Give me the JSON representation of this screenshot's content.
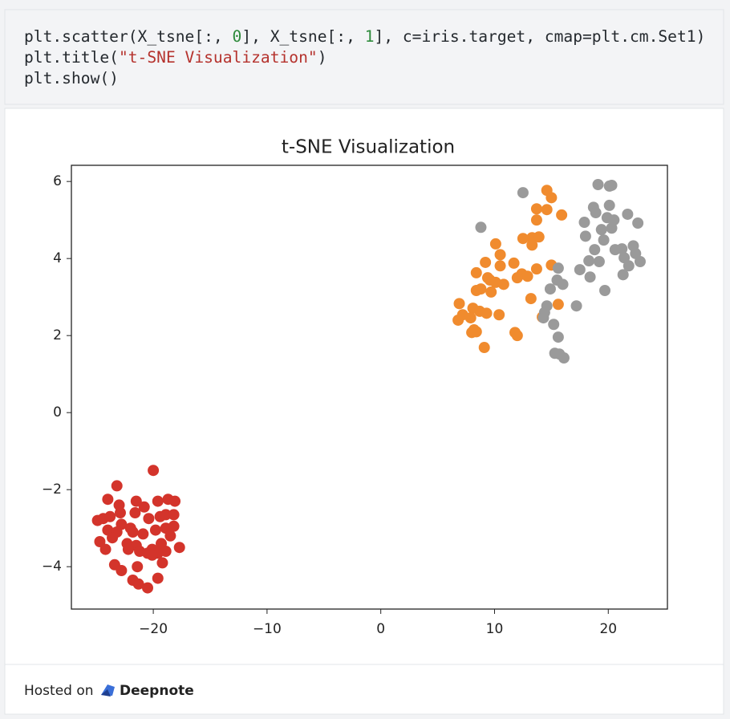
{
  "code": {
    "lines": [
      [
        {
          "text": "plt.scatter(X_tsne[:, ",
          "color": "#24292e"
        },
        {
          "text": "0",
          "color": "#2e8b3c"
        },
        {
          "text": "], X_tsne[:, ",
          "color": "#24292e"
        },
        {
          "text": "1",
          "color": "#2e8b3c"
        },
        {
          "text": "], c=iris.target, cmap=plt.cm.Set1)",
          "color": "#24292e"
        }
      ],
      [
        {
          "text": "plt.title(",
          "color": "#24292e"
        },
        {
          "text": "\"t-SNE Visualization\"",
          "color": "#b5322d"
        },
        {
          "text": ")",
          "color": "#24292e"
        }
      ],
      [
        {
          "text": "plt.show()",
          "color": "#24292e"
        }
      ]
    ]
  },
  "chart_data": {
    "type": "scatter",
    "title": "t-SNE Visualization",
    "xlim": [
      -27.2,
      25.2
    ],
    "ylim": [
      -5.1,
      6.42
    ],
    "xticks": [
      {
        "value": -20,
        "label": "−20"
      },
      {
        "value": -10,
        "label": "−10"
      },
      0,
      10,
      20
    ],
    "yticks": [
      {
        "value": -4,
        "label": "−4"
      },
      {
        "value": -2,
        "label": "−2"
      },
      0,
      2,
      4,
      6
    ],
    "grid": false,
    "series": [
      {
        "color": "#d3342b",
        "x": [
          -20.0,
          -23.2,
          -24.0,
          -21.5,
          -18.7,
          -18.1,
          -23.0,
          -20.8,
          -19.6,
          -24.9,
          -24.4,
          -23.8,
          -22.9,
          -21.6,
          -20.4,
          -19.4,
          -18.9,
          -18.2,
          -22.8,
          -22.0,
          -24.0,
          -23.2,
          -21.8,
          -20.9,
          -19.8,
          -18.9,
          -18.2,
          -24.7,
          -23.6,
          -22.3,
          -21.5,
          -22.2,
          -20.1,
          -19.3,
          -18.5,
          -17.7,
          -24.2,
          -21.2,
          -20.5,
          -19.6,
          -18.9,
          -23.4,
          -22.8,
          -21.4,
          -20.1,
          -19.2,
          -21.8,
          -21.3,
          -19.6,
          -20.5
        ],
        "y": [
          -1.5,
          -1.9,
          -2.25,
          -2.3,
          -2.25,
          -2.3,
          -2.4,
          -2.45,
          -2.3,
          -2.8,
          -2.75,
          -2.7,
          -2.6,
          -2.6,
          -2.75,
          -2.7,
          -2.65,
          -2.65,
          -2.9,
          -3.0,
          -3.05,
          -3.1,
          -3.1,
          -3.15,
          -3.05,
          -3.0,
          -2.95,
          -3.35,
          -3.25,
          -3.4,
          -3.45,
          -3.55,
          -3.55,
          -3.4,
          -3.2,
          -3.5,
          -3.55,
          -3.6,
          -3.65,
          -3.65,
          -3.6,
          -3.95,
          -4.1,
          -4.0,
          -3.7,
          -3.9,
          -4.35,
          -4.45,
          -4.3,
          -4.55
        ]
      },
      {
        "color": "#f08b2e",
        "x": [
          14.6,
          15.0,
          13.7,
          14.6,
          13.7,
          15.9,
          13.3,
          12.5,
          13.9,
          10.1,
          10.5,
          13.3,
          9.2,
          8.4,
          10.5,
          11.7,
          15.0,
          13.7,
          12.4,
          12.9,
          12.0,
          9.6,
          9.4,
          10.1,
          10.8,
          8.8,
          8.4,
          9.7,
          6.9,
          13.2,
          8.1,
          8.7,
          9.3,
          10.4,
          7.2,
          6.8,
          7.9,
          15.6,
          8.2,
          8.4,
          8.0,
          11.8,
          12.0,
          9.1,
          14.2
        ],
        "y": [
          5.77,
          5.58,
          5.29,
          5.27,
          5.0,
          5.13,
          4.54,
          4.52,
          4.56,
          4.38,
          4.1,
          4.35,
          3.9,
          3.63,
          3.81,
          3.88,
          3.83,
          3.73,
          3.6,
          3.54,
          3.5,
          3.44,
          3.5,
          3.38,
          3.33,
          3.21,
          3.17,
          3.13,
          2.83,
          2.96,
          2.71,
          2.63,
          2.58,
          2.54,
          2.54,
          2.4,
          2.46,
          2.81,
          2.15,
          2.1,
          2.08,
          2.08,
          2.0,
          1.69,
          2.48
        ]
      },
      {
        "color": "#9a9a9a",
        "x": [
          19.1,
          20.1,
          20.3,
          12.5,
          18.7,
          20.1,
          18.9,
          17.9,
          19.9,
          20.5,
          21.7,
          22.6,
          8.8,
          19.4,
          20.3,
          18.0,
          19.6,
          22.2,
          21.2,
          18.8,
          20.6,
          18.3,
          19.2,
          21.4,
          22.4,
          22.8,
          21.8,
          17.5,
          15.6,
          18.4,
          21.3,
          15.5,
          16.0,
          19.7,
          14.9,
          14.6,
          17.2,
          14.4,
          14.3,
          15.2,
          15.6,
          15.3,
          15.7,
          16.1
        ],
        "y": [
          5.92,
          5.88,
          5.9,
          5.71,
          5.33,
          5.38,
          5.19,
          4.94,
          5.06,
          5.0,
          5.15,
          4.92,
          4.81,
          4.75,
          4.79,
          4.58,
          4.48,
          4.33,
          4.25,
          4.23,
          4.23,
          3.94,
          3.92,
          4.02,
          4.13,
          3.92,
          3.81,
          3.71,
          3.75,
          3.52,
          3.58,
          3.44,
          3.33,
          3.17,
          3.21,
          2.77,
          2.77,
          2.6,
          2.46,
          2.29,
          1.96,
          1.54,
          1.52,
          1.42
        ]
      }
    ]
  },
  "footer": {
    "hosted": "Hosted on",
    "brand": "Deepnote"
  }
}
